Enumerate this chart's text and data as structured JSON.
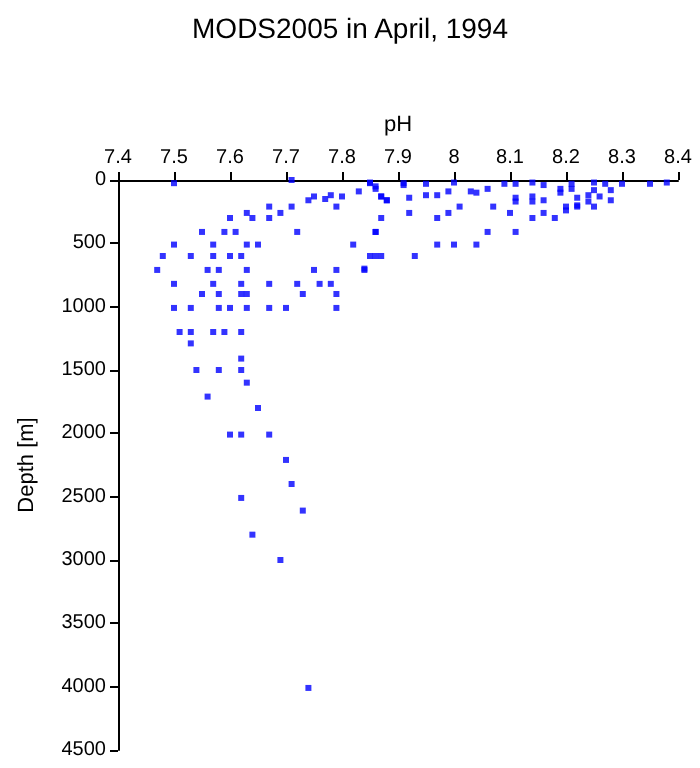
{
  "chart_data": {
    "type": "scatter",
    "title": "MODS2005 in April, 1994",
    "xlabel": "pH",
    "ylabel": "Depth [m]",
    "xlim": [
      7.4,
      8.4
    ],
    "xticks": [
      7.4,
      7.5,
      7.6,
      7.7,
      7.8,
      7.9,
      8,
      8.1,
      8.2,
      8.3,
      8.4
    ],
    "ylim": [
      4500,
      0
    ],
    "yticks": [
      0,
      500,
      1000,
      1500,
      2000,
      2500,
      3000,
      3500,
      4000,
      4500
    ],
    "grid": false,
    "marker": "square",
    "series": [
      {
        "color": "#0000ff",
        "x": [
          7.5,
          7.71,
          7.6,
          7.63,
          7.64,
          7.67,
          7.69,
          7.67,
          7.71,
          7.72,
          7.74,
          7.75,
          7.77,
          7.78,
          7.8,
          7.79,
          7.83,
          7.85,
          7.86,
          7.87,
          7.88,
          7.87,
          7.86,
          7.91,
          7.55,
          7.59,
          7.61,
          7.5,
          7.48,
          7.53,
          7.57,
          7.6,
          7.62,
          7.63,
          7.65,
          7.57,
          7.47,
          7.56,
          7.58,
          7.63,
          7.75,
          7.79,
          7.82,
          7.84,
          7.85,
          7.87,
          7.5,
          7.57,
          7.62,
          7.67,
          7.72,
          7.76,
          7.78,
          7.55,
          7.58,
          7.62,
          7.63,
          7.73,
          7.79,
          7.5,
          7.53,
          7.58,
          7.6,
          7.63,
          7.67,
          7.7,
          7.79,
          7.51,
          7.53,
          7.57,
          7.59,
          7.62,
          7.53,
          7.62,
          7.54,
          7.58,
          7.62,
          7.63,
          7.56,
          7.65,
          7.6,
          7.62,
          7.67,
          7.7,
          7.71,
          7.62,
          7.73,
          7.64,
          7.69,
          7.74,
          7.85,
          7.91,
          7.95,
          8.0,
          8.09,
          8.11,
          8.14,
          8.16,
          8.21,
          8.25,
          8.27,
          8.3,
          8.35,
          8.38,
          7.86,
          7.87,
          7.88,
          7.92,
          7.95,
          7.97,
          7.99,
          8.03,
          8.04,
          8.06,
          8.11,
          8.11,
          8.14,
          8.14,
          8.16,
          8.19,
          8.19,
          8.21,
          8.22,
          8.22,
          8.24,
          8.24,
          8.25,
          8.26,
          8.28,
          8.28,
          8.2,
          8.2,
          8.22,
          8.25,
          8.16,
          7.92,
          7.97,
          7.99,
          8.01,
          8.07,
          8.1,
          8.14,
          8.18,
          7.86,
          8.06,
          8.11,
          7.97,
          8.0,
          8.04,
          7.86,
          7.93,
          7.84
        ],
        "values": [
          25,
          0,
          300,
          260,
          300,
          210,
          260,
          300,
          210,
          410,
          160,
          130,
          150,
          120,
          130,
          210,
          90,
          25,
          50,
          130,
          160,
          300,
          410,
          25,
          410,
          410,
          410,
          510,
          600,
          600,
          600,
          600,
          600,
          510,
          510,
          510,
          710,
          710,
          710,
          710,
          710,
          710,
          510,
          710,
          600,
          600,
          820,
          820,
          820,
          820,
          820,
          820,
          820,
          900,
          900,
          900,
          900,
          900,
          900,
          1010,
          1010,
          1010,
          1010,
          1010,
          1010,
          1010,
          1010,
          1200,
          1200,
          1200,
          1200,
          1200,
          1290,
          1410,
          1500,
          1500,
          1500,
          1600,
          1710,
          1800,
          2010,
          2010,
          2010,
          2210,
          2400,
          2510,
          2610,
          2800,
          3000,
          4010,
          20,
          40,
          30,
          20,
          30,
          30,
          20,
          40,
          30,
          20,
          30,
          30,
          30,
          20,
          70,
          130,
          160,
          140,
          120,
          120,
          90,
          90,
          100,
          70,
          140,
          170,
          130,
          170,
          160,
          100,
          70,
          70,
          140,
          200,
          120,
          170,
          80,
          130,
          80,
          160,
          240,
          210,
          210,
          210,
          260,
          260,
          300,
          260,
          210,
          210,
          260,
          300,
          300,
          410,
          410,
          410,
          510,
          510,
          510,
          600,
          600,
          700
        ]
      }
    ]
  }
}
